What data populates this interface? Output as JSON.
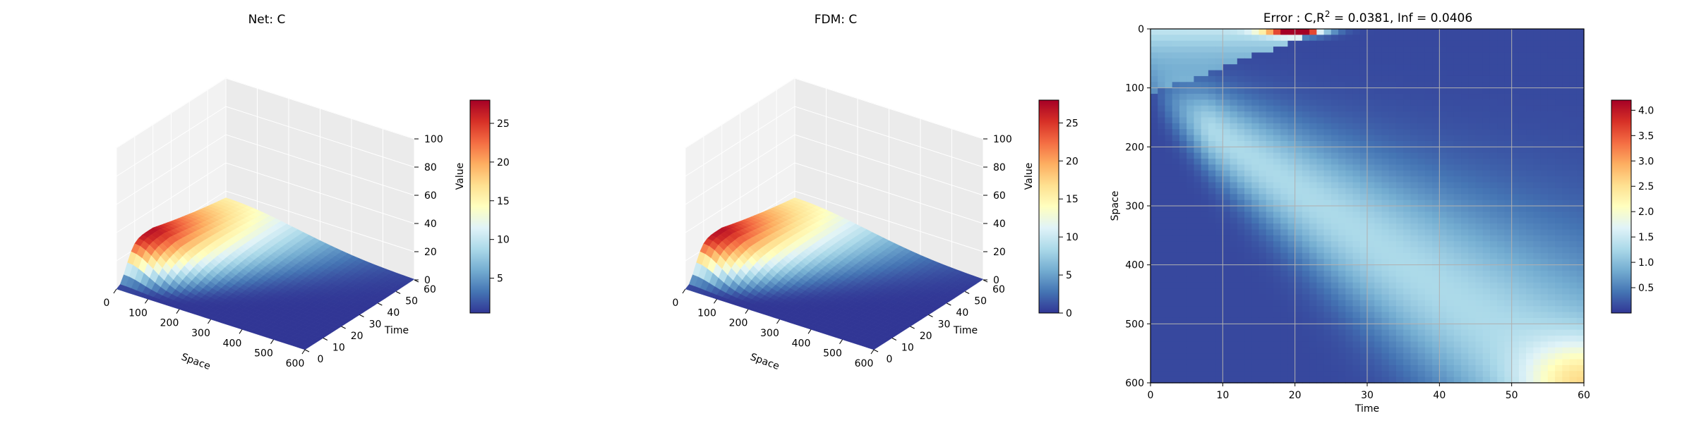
{
  "chart_data": [
    {
      "type": "surface",
      "title": "Net: C",
      "xlabel": "Space",
      "ylabel": "Time",
      "zlabel": "",
      "x_ticks": [
        0,
        100,
        200,
        300,
        400,
        500,
        600
      ],
      "y_ticks": [
        0,
        10,
        20,
        30,
        40,
        50,
        60
      ],
      "z_ticks": [
        0,
        20,
        40,
        60,
        80,
        100
      ],
      "xlim": [
        0,
        600
      ],
      "ylim": [
        0,
        60
      ],
      "zlim": [
        0,
        100
      ],
      "peak": {
        "space": 0,
        "time": 20,
        "value": 27
      },
      "colorbar": {
        "label": "Value",
        "ticks": [
          5,
          10,
          15,
          20,
          25
        ],
        "range": [
          0.5,
          28
        ],
        "cmap": "RdYlBu_r"
      }
    },
    {
      "type": "surface",
      "title": "FDM: C",
      "xlabel": "Space",
      "ylabel": "Time",
      "zlabel": "",
      "x_ticks": [
        0,
        100,
        200,
        300,
        400,
        500,
        600
      ],
      "y_ticks": [
        0,
        10,
        20,
        30,
        40,
        50,
        60
      ],
      "z_ticks": [
        0,
        20,
        40,
        60,
        80,
        100
      ],
      "xlim": [
        0,
        600
      ],
      "ylim": [
        0,
        60
      ],
      "zlim": [
        0,
        100
      ],
      "peak": {
        "space": 0,
        "time": 20,
        "value": 27
      },
      "colorbar": {
        "label": "Value",
        "ticks": [
          0,
          5,
          10,
          15,
          20,
          25
        ],
        "range": [
          0,
          28
        ],
        "cmap": "RdYlBu_r"
      }
    },
    {
      "type": "heatmap",
      "title_prefix": "Error : C,R",
      "title_sup": "2",
      "title_suffix": " = 0.0381, Inf = 0.0406",
      "xlabel": "Time",
      "ylabel": "Space",
      "x_ticks": [
        0,
        10,
        20,
        30,
        40,
        50,
        60
      ],
      "y_ticks": [
        0,
        100,
        200,
        300,
        400,
        500,
        600
      ],
      "xlim": [
        0,
        60
      ],
      "ylim": [
        600,
        0
      ],
      "grid": true,
      "colorbar": {
        "label": "",
        "ticks": [
          "0.5",
          "1.0",
          "1.5",
          "2.0",
          "2.5",
          "3.0",
          "3.5",
          "4.0"
        ],
        "range": [
          0,
          4.2
        ],
        "cmap": "RdYlBu_r"
      }
    }
  ]
}
